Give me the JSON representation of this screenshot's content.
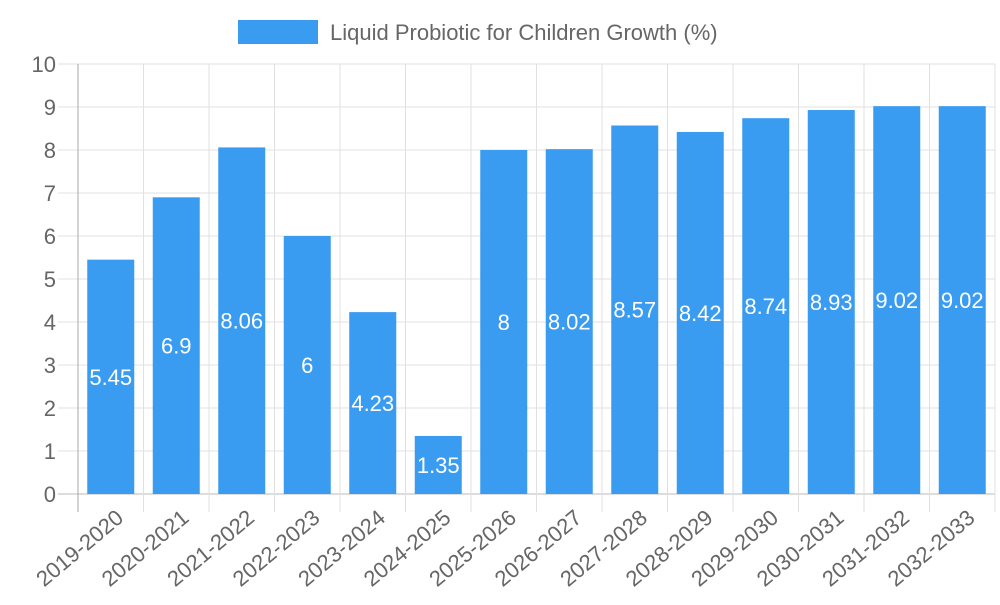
{
  "chart_data": {
    "type": "bar",
    "title": "",
    "xlabel": "",
    "ylabel": "",
    "legend": {
      "label": "Liquid Probiotic for Children Growth (%)",
      "position": "top"
    },
    "categories": [
      "2019-2020",
      "2020-2021",
      "2021-2022",
      "2022-2023",
      "2023-2024",
      "2024-2025",
      "2025-2026",
      "2026-2027",
      "2027-2028",
      "2028-2029",
      "2029-2030",
      "2030-2031",
      "2031-2032",
      "2032-2033"
    ],
    "series": [
      {
        "name": "Liquid Probiotic for Children Growth (%)",
        "values": [
          5.45,
          6.9,
          8.06,
          6,
          4.23,
          1.35,
          8,
          8.02,
          8.57,
          8.42,
          8.74,
          8.93,
          9.02,
          9.02
        ]
      }
    ],
    "ylim": [
      0,
      10
    ],
    "yticks": [
      0,
      1,
      2,
      3,
      4,
      5,
      6,
      7,
      8,
      9,
      10
    ],
    "grid": true,
    "colors": {
      "bar": "#3a9cf0",
      "grid": "#e0e0e0",
      "text": "#666666",
      "label": "#ffffff"
    }
  }
}
